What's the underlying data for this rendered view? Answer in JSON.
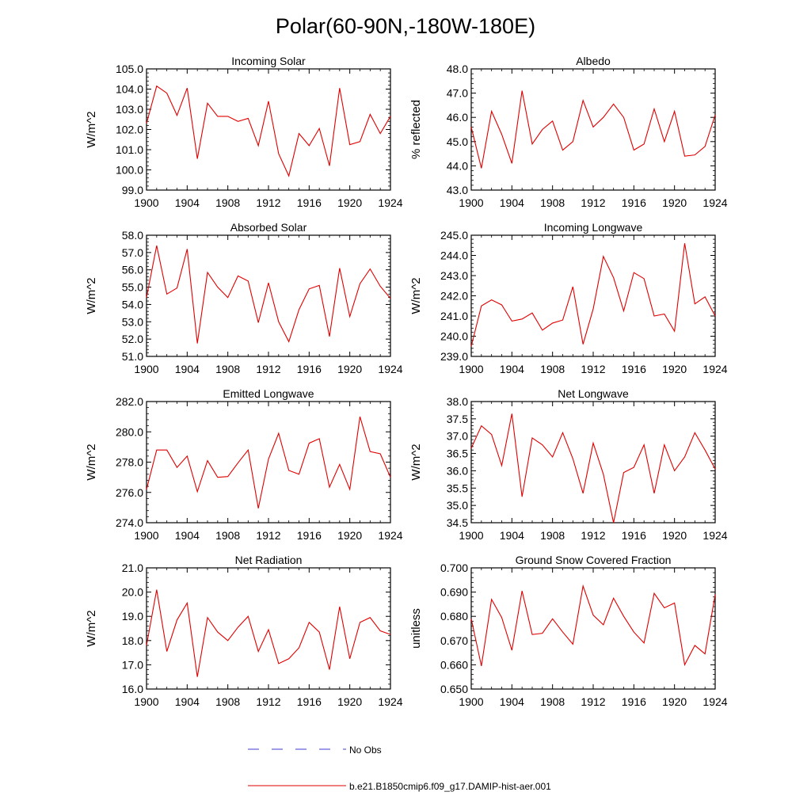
{
  "figure": {
    "title": "Polar(60-90N,-180W-180E)",
    "legend": [
      {
        "label": "No Obs",
        "color": "#3b3bd6",
        "dashed": true
      },
      {
        "label": "b.e21.B1850cmip6.f09_g17.DAMIP-hist-aer.001",
        "color": "#e00000",
        "dashed": false
      }
    ]
  },
  "chart_data": [
    {
      "type": "line",
      "title": "Incoming Solar",
      "ylabel": "W/m^2",
      "xlabel": "",
      "x": [
        1900,
        1901,
        1902,
        1903,
        1904,
        1905,
        1906,
        1907,
        1908,
        1909,
        1910,
        1911,
        1912,
        1913,
        1914,
        1915,
        1916,
        1917,
        1918,
        1919,
        1920,
        1921,
        1922,
        1923,
        1924
      ],
      "series": [
        {
          "color": "#e00000",
          "values": [
            102.3,
            104.15,
            103.8,
            102.7,
            104.05,
            100.55,
            103.3,
            102.65,
            102.65,
            102.4,
            102.55,
            101.2,
            103.4,
            100.8,
            99.7,
            101.8,
            101.2,
            102.05,
            100.2,
            104.05,
            101.25,
            101.4,
            102.75,
            101.8,
            102.65
          ]
        }
      ],
      "xlim": [
        1900,
        1924
      ],
      "ylim": [
        99.0,
        105.0
      ],
      "yticks": [
        99.0,
        100.0,
        101.0,
        102.0,
        103.0,
        104.0,
        105.0
      ],
      "ytick_labels": [
        "99.0",
        "100.0",
        "101.0",
        "102.0",
        "103.0",
        "104.0",
        "105.0"
      ],
      "xticks": [
        1900,
        1904,
        1908,
        1912,
        1916,
        1920,
        1924
      ],
      "xtick_labels": [
        "1900",
        "1904",
        "1908",
        "1912",
        "1916",
        "1920",
        "1924"
      ]
    },
    {
      "type": "line",
      "title": "Albedo",
      "ylabel": "% reflected",
      "xlabel": "",
      "x": [
        1900,
        1901,
        1902,
        1903,
        1904,
        1905,
        1906,
        1907,
        1908,
        1909,
        1910,
        1911,
        1912,
        1913,
        1914,
        1915,
        1916,
        1917,
        1918,
        1919,
        1920,
        1921,
        1922,
        1923,
        1924
      ],
      "series": [
        {
          "color": "#e00000",
          "values": [
            45.6,
            43.9,
            46.25,
            45.3,
            44.1,
            47.1,
            44.9,
            45.5,
            45.85,
            44.65,
            45.0,
            46.7,
            45.6,
            46.0,
            46.55,
            46.0,
            44.65,
            44.9,
            46.35,
            45.0,
            46.25,
            44.4,
            44.45,
            44.8,
            46.1
          ]
        }
      ],
      "xlim": [
        1900,
        1924
      ],
      "ylim": [
        43.0,
        48.0
      ],
      "yticks": [
        43.0,
        44.0,
        45.0,
        46.0,
        47.0,
        48.0
      ],
      "ytick_labels": [
        "43.0",
        "44.0",
        "45.0",
        "46.0",
        "47.0",
        "48.0"
      ],
      "xticks": [
        1900,
        1904,
        1908,
        1912,
        1916,
        1920,
        1924
      ],
      "xtick_labels": [
        "1900",
        "1904",
        "1908",
        "1912",
        "1916",
        "1920",
        "1924"
      ]
    },
    {
      "type": "line",
      "title": "Absorbed Solar",
      "ylabel": "W/m^2",
      "xlabel": "",
      "x": [
        1900,
        1901,
        1902,
        1903,
        1904,
        1905,
        1906,
        1907,
        1908,
        1909,
        1910,
        1911,
        1912,
        1913,
        1914,
        1915,
        1916,
        1917,
        1918,
        1919,
        1920,
        1921,
        1922,
        1923,
        1924
      ],
      "series": [
        {
          "color": "#e00000",
          "values": [
            54.4,
            57.4,
            54.6,
            54.95,
            57.2,
            51.75,
            55.85,
            55.0,
            54.4,
            55.65,
            55.35,
            52.95,
            55.25,
            53.0,
            51.85,
            53.7,
            54.9,
            55.1,
            52.15,
            56.1,
            53.3,
            55.2,
            56.05,
            55.05,
            54.35
          ]
        }
      ],
      "xlim": [
        1900,
        1924
      ],
      "ylim": [
        51.0,
        58.0
      ],
      "yticks": [
        51.0,
        52.0,
        53.0,
        54.0,
        55.0,
        56.0,
        57.0,
        58.0
      ],
      "ytick_labels": [
        "51.0",
        "52.0",
        "53.0",
        "54.0",
        "55.0",
        "56.0",
        "57.0",
        "58.0"
      ],
      "xticks": [
        1900,
        1904,
        1908,
        1912,
        1916,
        1920,
        1924
      ],
      "xtick_labels": [
        "1900",
        "1904",
        "1908",
        "1912",
        "1916",
        "1920",
        "1924"
      ]
    },
    {
      "type": "line",
      "title": "Incoming Longwave",
      "ylabel": "W/m^2",
      "xlabel": "",
      "x": [
        1900,
        1901,
        1902,
        1903,
        1904,
        1905,
        1906,
        1907,
        1908,
        1909,
        1910,
        1911,
        1912,
        1913,
        1914,
        1915,
        1916,
        1917,
        1918,
        1919,
        1920,
        1921,
        1922,
        1923,
        1924
      ],
      "series": [
        {
          "color": "#e00000",
          "values": [
            239.5,
            241.5,
            241.8,
            241.55,
            240.75,
            240.85,
            241.15,
            240.3,
            240.65,
            240.8,
            242.45,
            239.6,
            241.35,
            243.95,
            242.9,
            241.25,
            243.15,
            242.85,
            241.0,
            241.1,
            240.25,
            244.6,
            241.6,
            241.95,
            241.0
          ]
        }
      ],
      "xlim": [
        1900,
        1924
      ],
      "ylim": [
        239.0,
        245.0
      ],
      "yticks": [
        239.0,
        240.0,
        241.0,
        242.0,
        243.0,
        244.0,
        245.0
      ],
      "ytick_labels": [
        "239.0",
        "240.0",
        "241.0",
        "242.0",
        "243.0",
        "244.0",
        "245.0"
      ],
      "xticks": [
        1900,
        1904,
        1908,
        1912,
        1916,
        1920,
        1924
      ],
      "xtick_labels": [
        "1900",
        "1904",
        "1908",
        "1912",
        "1916",
        "1920",
        "1924"
      ]
    },
    {
      "type": "line",
      "title": "Emitted Longwave",
      "ylabel": "W/m^2",
      "xlabel": "",
      "x": [
        1900,
        1901,
        1902,
        1903,
        1904,
        1905,
        1906,
        1907,
        1908,
        1909,
        1910,
        1911,
        1912,
        1913,
        1914,
        1915,
        1916,
        1917,
        1918,
        1919,
        1920,
        1921,
        1922,
        1923,
        1924
      ],
      "series": [
        {
          "color": "#e00000",
          "values": [
            276.2,
            278.8,
            278.8,
            277.65,
            278.4,
            276.05,
            278.1,
            277.0,
            277.05,
            277.95,
            278.8,
            274.95,
            278.2,
            279.9,
            277.45,
            277.2,
            279.25,
            279.55,
            276.35,
            277.85,
            276.2,
            281.0,
            278.7,
            278.55,
            277.0
          ]
        }
      ],
      "xlim": [
        1900,
        1924
      ],
      "ylim": [
        274.0,
        282.0
      ],
      "yticks": [
        274.0,
        276.0,
        278.0,
        280.0,
        282.0
      ],
      "ytick_labels": [
        "274.0",
        "276.0",
        "278.0",
        "280.0",
        "282.0"
      ],
      "xticks": [
        1900,
        1904,
        1908,
        1912,
        1916,
        1920,
        1924
      ],
      "xtick_labels": [
        "1900",
        "1904",
        "1908",
        "1912",
        "1916",
        "1920",
        "1924"
      ]
    },
    {
      "type": "line",
      "title": "Net Longwave",
      "ylabel": "W/m^2",
      "xlabel": "",
      "x": [
        1900,
        1901,
        1902,
        1903,
        1904,
        1905,
        1906,
        1907,
        1908,
        1909,
        1910,
        1911,
        1912,
        1913,
        1914,
        1915,
        1916,
        1917,
        1918,
        1919,
        1920,
        1921,
        1922,
        1923,
        1924
      ],
      "series": [
        {
          "color": "#e00000",
          "values": [
            36.65,
            37.3,
            37.05,
            36.15,
            37.65,
            35.25,
            36.95,
            36.75,
            36.4,
            37.1,
            36.35,
            35.35,
            36.8,
            35.9,
            34.5,
            35.95,
            36.1,
            36.75,
            35.35,
            36.75,
            36.0,
            36.4,
            37.1,
            36.6,
            36.05
          ]
        }
      ],
      "xlim": [
        1900,
        1924
      ],
      "ylim": [
        34.5,
        38.0
      ],
      "yticks": [
        34.5,
        35.0,
        35.5,
        36.0,
        36.5,
        37.0,
        37.5,
        38.0
      ],
      "ytick_labels": [
        "34.5",
        "35.0",
        "35.5",
        "36.0",
        "36.5",
        "37.0",
        "37.5",
        "38.0"
      ],
      "xticks": [
        1900,
        1904,
        1908,
        1912,
        1916,
        1920,
        1924
      ],
      "xtick_labels": [
        "1900",
        "1904",
        "1908",
        "1912",
        "1916",
        "1920",
        "1924"
      ]
    },
    {
      "type": "line",
      "title": "Net Radiation",
      "ylabel": "W/m^2",
      "xlabel": "",
      "x": [
        1900,
        1901,
        1902,
        1903,
        1904,
        1905,
        1906,
        1907,
        1908,
        1909,
        1910,
        1911,
        1912,
        1913,
        1914,
        1915,
        1916,
        1917,
        1918,
        1919,
        1920,
        1921,
        1922,
        1923,
        1924
      ],
      "series": [
        {
          "color": "#e00000",
          "values": [
            17.8,
            20.1,
            17.55,
            18.85,
            19.55,
            16.5,
            18.95,
            18.35,
            18.0,
            18.55,
            19.0,
            17.55,
            18.45,
            17.05,
            17.25,
            17.7,
            18.75,
            18.35,
            16.8,
            19.4,
            17.25,
            18.75,
            18.95,
            18.4,
            18.25
          ]
        }
      ],
      "xlim": [
        1900,
        1924
      ],
      "ylim": [
        16.0,
        21.0
      ],
      "yticks": [
        16.0,
        17.0,
        18.0,
        19.0,
        20.0,
        21.0
      ],
      "ytick_labels": [
        "16.0",
        "17.0",
        "18.0",
        "19.0",
        "20.0",
        "21.0"
      ],
      "xticks": [
        1900,
        1904,
        1908,
        1912,
        1916,
        1920,
        1924
      ],
      "xtick_labels": [
        "1900",
        "1904",
        "1908",
        "1912",
        "1916",
        "1920",
        "1924"
      ]
    },
    {
      "type": "line",
      "title": "Ground Snow Covered Fraction",
      "ylabel": "unitless",
      "xlabel": "",
      "x": [
        1900,
        1901,
        1902,
        1903,
        1904,
        1905,
        1906,
        1907,
        1908,
        1909,
        1910,
        1911,
        1912,
        1913,
        1914,
        1915,
        1916,
        1917,
        1918,
        1919,
        1920,
        1921,
        1922,
        1923,
        1924
      ],
      "series": [
        {
          "color": "#e00000",
          "values": [
            0.679,
            0.6595,
            0.687,
            0.6795,
            0.666,
            0.6905,
            0.6725,
            0.673,
            0.679,
            0.6735,
            0.6685,
            0.6925,
            0.6805,
            0.6765,
            0.6875,
            0.68,
            0.6735,
            0.669,
            0.6895,
            0.6835,
            0.6855,
            0.66,
            0.668,
            0.6645,
            0.689
          ]
        }
      ],
      "xlim": [
        1900,
        1924
      ],
      "ylim": [
        0.65,
        0.7
      ],
      "yticks": [
        0.65,
        0.66,
        0.67,
        0.68,
        0.69,
        0.7
      ],
      "ytick_labels": [
        "0.650",
        "0.660",
        "0.670",
        "0.680",
        "0.690",
        "0.700"
      ],
      "xticks": [
        1900,
        1904,
        1908,
        1912,
        1916,
        1920,
        1924
      ],
      "xtick_labels": [
        "1900",
        "1904",
        "1908",
        "1912",
        "1916",
        "1920",
        "1924"
      ]
    }
  ]
}
